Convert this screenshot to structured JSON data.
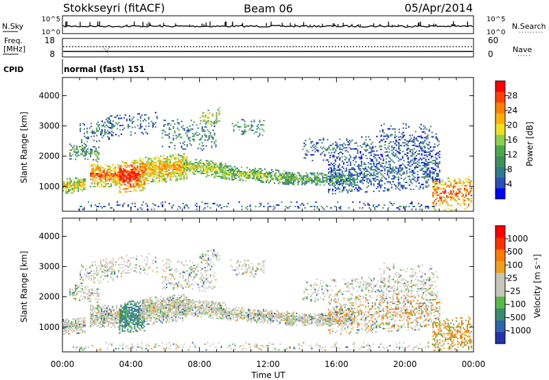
{
  "header": {
    "station": "Stokkseyri (fitACF)",
    "beam": "Beam 06",
    "date": "05/Apr/2014"
  },
  "status_panel": {
    "nsky_label": "N.Sky",
    "nsky_ticks": [
      "10^5",
      "10^0"
    ],
    "nsearch_label": "N.Search",
    "nsearch_ticks": [
      "10^5",
      "10^0"
    ],
    "freq_label_line1": "Freq.",
    "freq_label_line2": "[MHz]",
    "freq_ticks": [
      "18",
      "8"
    ],
    "nave_label": "Nave",
    "nave_ticks": [
      "60",
      "0"
    ],
    "cpid_label": "CPID",
    "cpid_value": "normal (fast) 151"
  },
  "chart_data": [
    {
      "type": "heatmap",
      "name": "power",
      "ylabel": "Slant Range [km]",
      "yticks": [
        1000,
        2000,
        3000,
        4000
      ],
      "ylim": [
        180,
        4600
      ],
      "xlim_hours": [
        0,
        24
      ],
      "colorbar_label": "Power [dB]",
      "colorbar_ticks": [
        "28",
        "24",
        "20",
        "16",
        "12",
        "8",
        "4"
      ],
      "colorbar_colors": [
        "#0000ff",
        "#2b4fb5",
        "#2e7a8f",
        "#3f8f5a",
        "#4ca84c",
        "#8fd04a",
        "#f0e020",
        "#ffb000",
        "#ff8000",
        "#ff4000",
        "#ff0000"
      ]
    },
    {
      "type": "heatmap",
      "name": "velocity",
      "ylabel": "Slant Range [km]",
      "yticks": [
        1000,
        2000,
        3000,
        4000
      ],
      "ylim": [
        180,
        4600
      ],
      "xlim_hours": [
        0,
        24
      ],
      "xticks": [
        "00:00",
        "04:00",
        "08:00",
        "12:00",
        "16:00",
        "20:00",
        "00:00"
      ],
      "xlabel": "Time UT",
      "colorbar_label": "Velocity [m s⁻¹]",
      "colorbar_ticks": [
        "1000",
        "500",
        "100",
        "25",
        "-25",
        "-100",
        "-500",
        "-1000"
      ],
      "colorbar_colors": [
        "#2233aa",
        "#2e66aa",
        "#3a8a70",
        "#58b848",
        "#c8c6bc",
        "#c8c6bc",
        "#f0a020",
        "#ff7a00",
        "#ff3000",
        "#ff0000"
      ]
    }
  ]
}
